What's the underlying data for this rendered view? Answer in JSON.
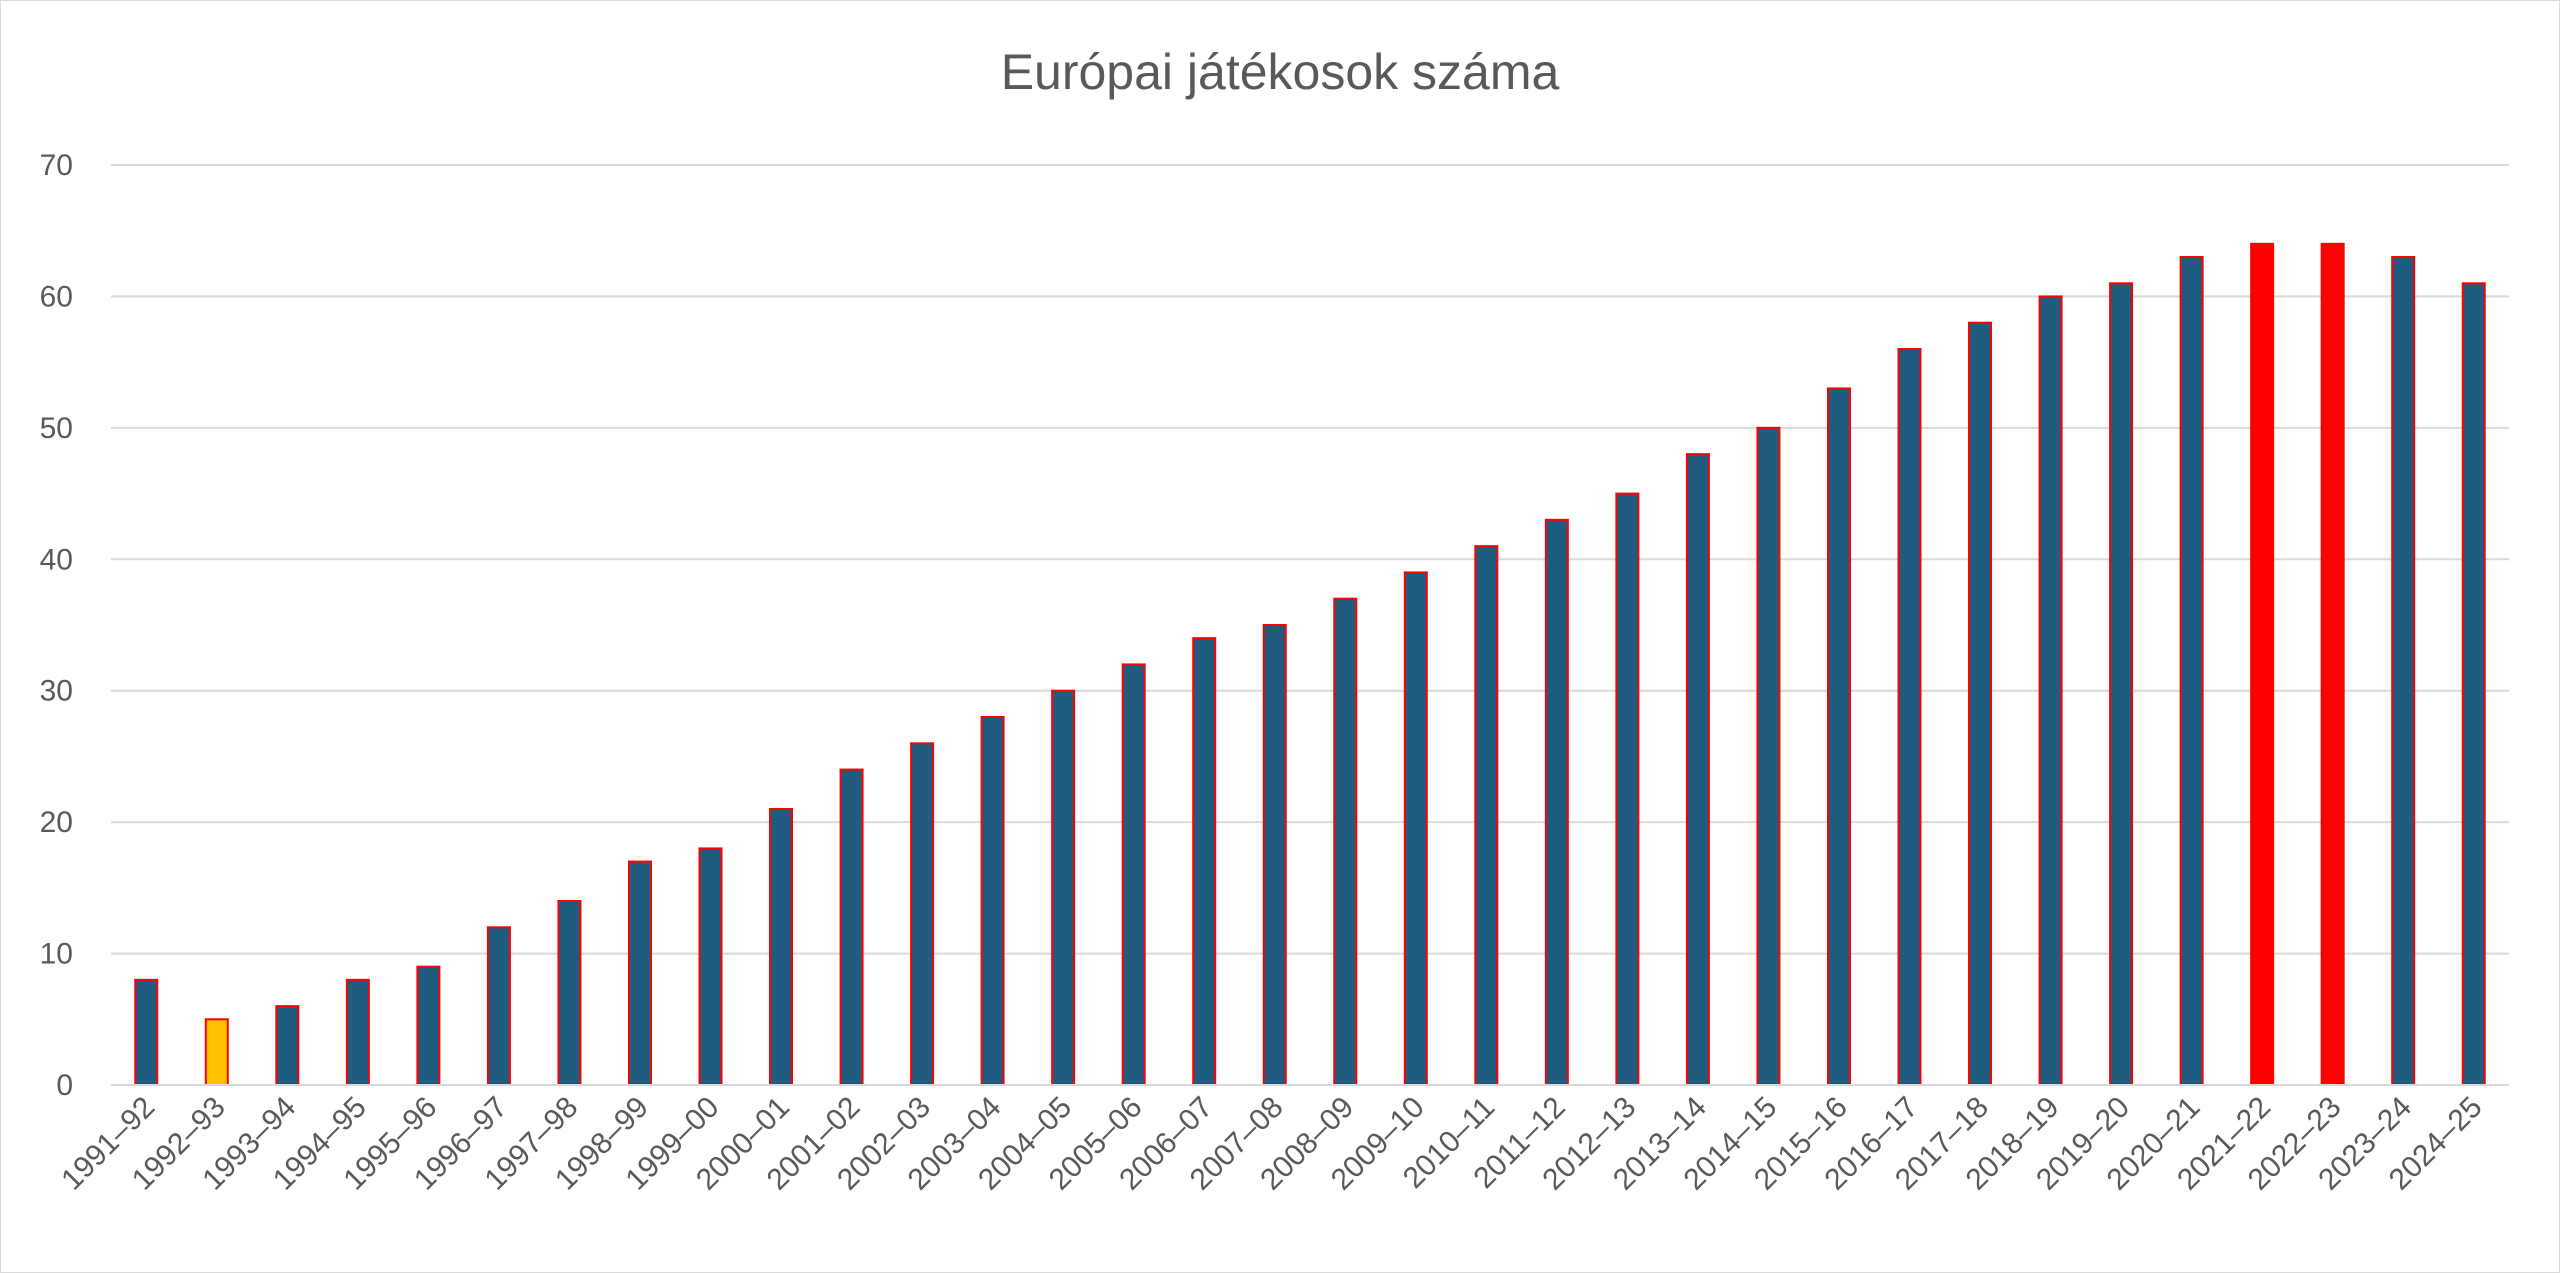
{
  "chart_data": {
    "type": "bar",
    "title": "Európai játékosok száma",
    "xlabel": "",
    "ylabel": "",
    "ylim": [
      0,
      70
    ],
    "yticks": [
      0,
      10,
      20,
      30,
      40,
      50,
      60,
      70
    ],
    "grid": true,
    "legend": "none",
    "categories": [
      "1991–92",
      "1992–93",
      "1993–94",
      "1994–95",
      "1995–96",
      "1996–97",
      "1997–98",
      "1998–99",
      "1999–00",
      "2000–01",
      "2001–02",
      "2002–03",
      "2003–04",
      "2004–05",
      "2005–06",
      "2006–07",
      "2007–08",
      "2008–09",
      "2009–10",
      "2010–11",
      "2011–12",
      "2012–13",
      "2013–14",
      "2014–15",
      "2015–16",
      "2016–17",
      "2017–18",
      "2018–19",
      "2019–20",
      "2020–21",
      "2021–22",
      "2022–23",
      "2023–24",
      "2024–25"
    ],
    "values": [
      8,
      5,
      6,
      8,
      9,
      12,
      14,
      17,
      18,
      21,
      24,
      26,
      28,
      30,
      32,
      34,
      35,
      37,
      39,
      41,
      43,
      45,
      48,
      50,
      53,
      56,
      58,
      60,
      61,
      63,
      64,
      64,
      63,
      61
    ],
    "bar_colors": [
      "#1f5c7f",
      "#ffc000",
      "#1f5c7f",
      "#1f5c7f",
      "#1f5c7f",
      "#1f5c7f",
      "#1f5c7f",
      "#1f5c7f",
      "#1f5c7f",
      "#1f5c7f",
      "#1f5c7f",
      "#1f5c7f",
      "#1f5c7f",
      "#1f5c7f",
      "#1f5c7f",
      "#1f5c7f",
      "#1f5c7f",
      "#1f5c7f",
      "#1f5c7f",
      "#1f5c7f",
      "#1f5c7f",
      "#1f5c7f",
      "#1f5c7f",
      "#1f5c7f",
      "#1f5c7f",
      "#1f5c7f",
      "#1f5c7f",
      "#1f5c7f",
      "#1f5c7f",
      "#1f5c7f",
      "#ff0000",
      "#ff0000",
      "#1f5c7f",
      "#1f5c7f"
    ],
    "bar_outline_color": "#ff0000",
    "gridline_color": "#d9d9d9",
    "text_color": "#595959"
  }
}
